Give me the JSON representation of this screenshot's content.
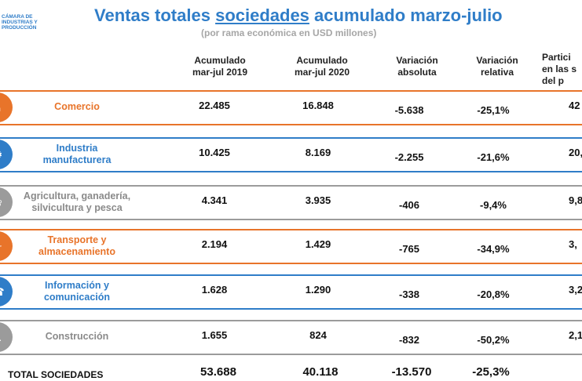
{
  "logo_text": "Cámara de Industrias y Producción",
  "title_pre": "Ventas totales ",
  "title_underlined": "sociedades",
  "title_post": " acumulado marzo-julio",
  "subtitle": "(por rama económica en USD millones)",
  "headers": [
    "Acumulado\nmar-jul 2019",
    "Acumulado\nmar-jul 2020",
    "Variación\nabsoluta",
    "Variación\nrelativa",
    "Partici\nen las s\ndel p"
  ],
  "rows": [
    {
      "label": "Comercio",
      "color": "#e8742a",
      "text_color": "#e8742a",
      "v2019": "22.485",
      "v2020": "16.848",
      "abs": "-5.638",
      "rel": "-25,1%",
      "part": "42"
    },
    {
      "label": "Industria\nmanufacturera",
      "color": "#2f7dc8",
      "text_color": "#2f7dc8",
      "v2019": "10.425",
      "v2020": "8.169",
      "abs": "-2.255",
      "rel": "-21,6%",
      "part": "20,"
    },
    {
      "label": "Agricultura, ganadería,\nsilvicultura y pesca",
      "color": "#9b9b9b",
      "text_color": "#8a8a8a",
      "v2019": "4.341",
      "v2020": "3.935",
      "abs": "-406",
      "rel": "-9,4%",
      "part": "9,8"
    },
    {
      "label": "Transporte y\nalmacenamiento",
      "color": "#e8742a",
      "text_color": "#e8742a",
      "v2019": "2.194",
      "v2020": "1.429",
      "abs": "-765",
      "rel": "-34,9%",
      "part": "3,"
    },
    {
      "label": "Información y\ncomunicación",
      "color": "#2f7dc8",
      "text_color": "#2f7dc8",
      "v2019": "1.628",
      "v2020": "1.290",
      "abs": "-338",
      "rel": "-20,8%",
      "part": "3,2"
    },
    {
      "label": "Construcción",
      "color": "#9b9b9b",
      "text_color": "#8a8a8a",
      "v2019": "1.655",
      "v2020": "824",
      "abs": "-832",
      "rel": "-50,2%",
      "part": "2,1"
    }
  ],
  "total": {
    "label": "TOTAL SOCIEDADES",
    "v2019": "53.688",
    "v2020": "40.118",
    "abs": "-13.570",
    "rel": "-25,3%"
  }
}
